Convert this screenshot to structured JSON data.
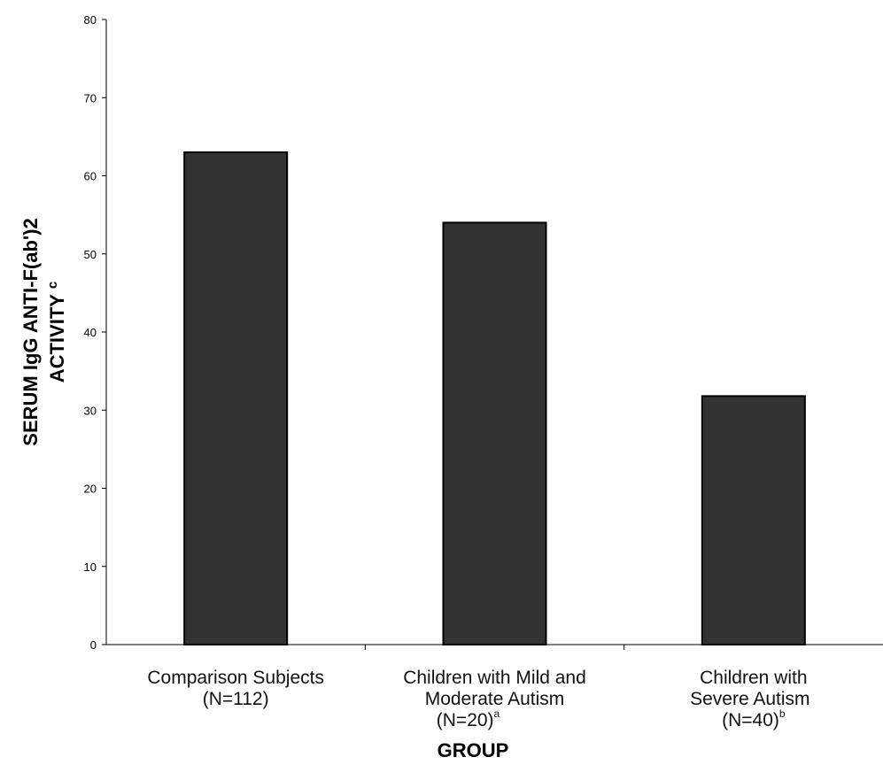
{
  "chart_data": {
    "type": "bar",
    "ylabel_line1": "SERUM IgG ANTI-F(ab')2",
    "ylabel_line2": "ACTIVITY",
    "ylabel_superscript": "c",
    "xlabel": "GROUP",
    "ylim": [
      0,
      80
    ],
    "yticks": [
      "0",
      "10",
      "20",
      "30",
      "40",
      "50",
      "60",
      "70",
      "80"
    ],
    "categories": [
      {
        "lines": [
          "Comparison Subjects",
          "(N=112)"
        ],
        "superscript": ""
      },
      {
        "lines": [
          "Children with Mild and",
          "Moderate Autism",
          "(N=20)"
        ],
        "superscript": "a"
      },
      {
        "lines": [
          "Children with",
          "Severe Autism",
          "(N=40)"
        ],
        "superscript": "b"
      }
    ],
    "values": [
      63,
      54,
      31.8
    ],
    "bar_color": "#333333",
    "grid": false
  }
}
